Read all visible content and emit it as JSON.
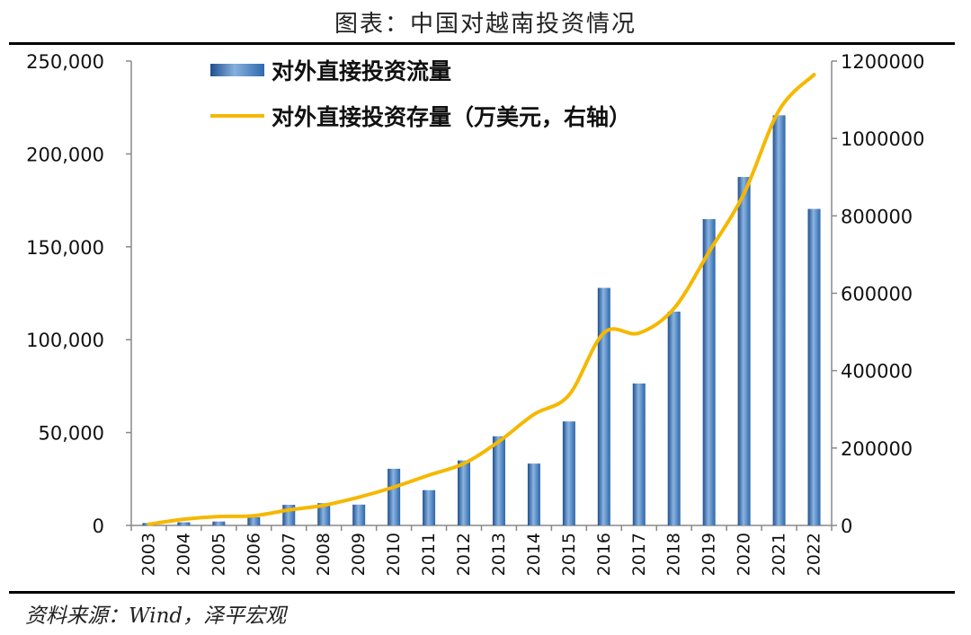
{
  "title": "图表：中国对越南投资情况",
  "source": "资料来源：Wind，泽平宏观",
  "chart_data": {
    "type": "bar",
    "categories": [
      "2003",
      "2004",
      "2005",
      "2006",
      "2007",
      "2008",
      "2009",
      "2010",
      "2011",
      "2012",
      "2013",
      "2014",
      "2015",
      "2016",
      "2017",
      "2018",
      "2019",
      "2020",
      "2021",
      "2022"
    ],
    "series": [
      {
        "name": "对外直接投资流量",
        "type": "bar",
        "axis": "left",
        "color": "#4a7fbd",
        "values": [
          1300,
          1700,
          2100,
          4400,
          11100,
          12000,
          11200,
          30500,
          19000,
          35000,
          48000,
          33300,
          56000,
          127900,
          76400,
          115100,
          164900,
          187600,
          220800,
          170400
        ]
      },
      {
        "name": "对外直接投资存量（万美元，右轴）",
        "type": "line",
        "axis": "right",
        "color": "#f5b800",
        "values": [
          3000,
          16000,
          23000,
          25000,
          40000,
          52000,
          73000,
          99000,
          130000,
          160000,
          217000,
          287000,
          337000,
          498000,
          497000,
          561000,
          707000,
          858000,
          1073000,
          1165000
        ]
      }
    ],
    "y_left": {
      "ylim": [
        0,
        250000
      ],
      "ticks": [
        0,
        50000,
        100000,
        150000,
        200000,
        250000
      ],
      "tick_labels": [
        "0",
        "50,000",
        "100,000",
        "150,000",
        "200,000",
        "250,000"
      ]
    },
    "y_right": {
      "ylim": [
        0,
        1200000
      ],
      "ticks": [
        0,
        200000,
        400000,
        600000,
        800000,
        1000000,
        1200000
      ],
      "tick_labels": [
        "0",
        "200000",
        "400000",
        "600000",
        "800000",
        "1000000",
        "1200000"
      ]
    },
    "grid": false,
    "legend_position": "top-left"
  }
}
